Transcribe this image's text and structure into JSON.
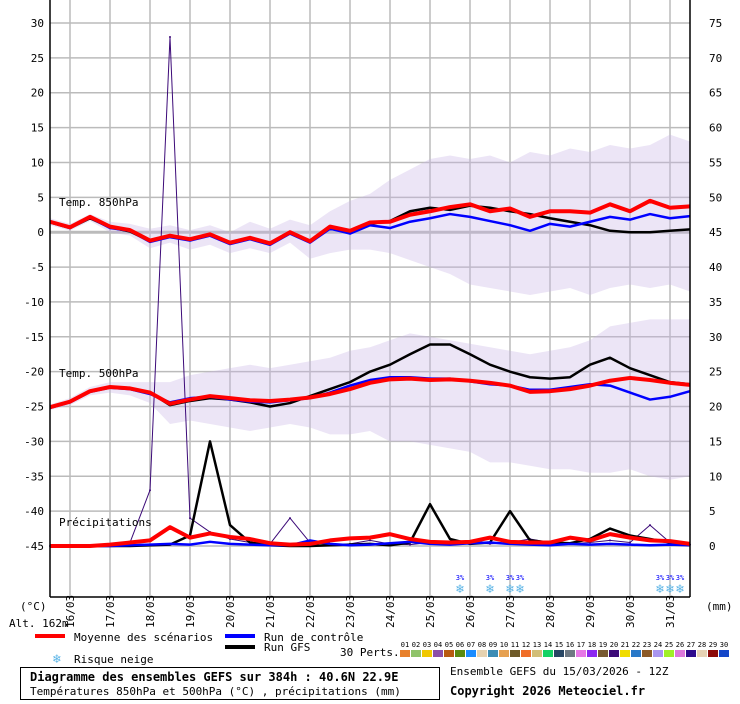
{
  "chart_data": {
    "type": "line",
    "title": "Diagramme des ensembles GEFS sur 384h : 40.6N 22.9E",
    "subtitle": "Températures 850hPa et 500hPa (°C) , précipitations (mm)",
    "run_info": "Ensemble GEFS du 15/03/2026 - 12Z",
    "copyright": "Copyright 2026 Meteociel.fr",
    "altitude": "Alt. 162m",
    "left_unit": "(°C)",
    "right_unit": "(mm)",
    "left_axis": {
      "range": [
        -45,
        30
      ],
      "ticks": [
        "30",
        "25",
        "20",
        "15",
        "10",
        "5",
        "0",
        "-5",
        "-10",
        "-15",
        "-20",
        "-25",
        "-30",
        "-35",
        "-40",
        "-45"
      ]
    },
    "right_axis": {
      "range": [
        0,
        75
      ],
      "ticks": [
        "75",
        "70",
        "65",
        "60",
        "55",
        "50",
        "45",
        "40",
        "35",
        "30",
        "25",
        "20",
        "15",
        "10",
        "5",
        "0"
      ]
    },
    "x_dates": [
      "16/03",
      "17/03",
      "18/03",
      "19/03",
      "20/03",
      "21/03",
      "22/03",
      "23/03",
      "24/03",
      "25/03",
      "26/03",
      "27/03",
      "28/03",
      "29/03",
      "30/03",
      "31/03"
    ],
    "x_hours_step": 12,
    "section_labels": {
      "t850": "Temp. 850hPa",
      "t500": "Temp. 500hPa",
      "precip": "Précipitations"
    },
    "series": {
      "t850_mean": [
        1.5,
        0.7,
        2.2,
        0.8,
        0.3,
        -1.2,
        -0.5,
        -1.0,
        -0.3,
        -1.5,
        -0.8,
        -1.6,
        0.0,
        -1.3,
        0.8,
        0.2,
        1.4,
        1.5,
        2.5,
        3.0,
        3.6,
        4.0,
        3.0,
        3.4,
        2.2,
        3.0,
        3.0,
        2.8,
        4.0,
        3.0,
        4.5,
        3.5,
        3.7
      ],
      "t850_control": [
        1.5,
        0.6,
        2.1,
        0.6,
        0.2,
        -1.4,
        -0.7,
        -1.2,
        -0.5,
        -1.7,
        -1.0,
        -1.8,
        -0.2,
        -1.5,
        0.5,
        -0.2,
        1.0,
        0.6,
        1.5,
        2.0,
        2.6,
        2.2,
        1.6,
        1.0,
        0.2,
        1.2,
        0.8,
        1.5,
        2.2,
        1.8,
        2.6,
        2.0,
        2.3
      ],
      "t850_gfs": [
        1.4,
        0.6,
        2.0,
        0.7,
        0.1,
        -1.3,
        -0.6,
        -1.1,
        -0.4,
        -1.6,
        -0.9,
        -1.7,
        -0.1,
        -1.4,
        0.6,
        0.0,
        1.2,
        1.6,
        3.0,
        3.5,
        3.2,
        3.8,
        3.5,
        3.0,
        2.6,
        2.0,
        1.5,
        1.0,
        0.2,
        0.0,
        0.0,
        0.2,
        0.4
      ],
      "t850_min": [
        1.0,
        0.2,
        1.6,
        0.0,
        -0.5,
        -2.3,
        -1.5,
        -2.5,
        -1.8,
        -3.0,
        -2.3,
        -3.0,
        -1.5,
        -3.8,
        -3.0,
        -2.5,
        -2.5,
        -3.0,
        -4.0,
        -5.0,
        -6.0,
        -7.5,
        -8.0,
        -8.5,
        -9.0,
        -8.5,
        -8.0,
        -9.0,
        -8.0,
        -7.5,
        -8.0,
        -7.5,
        -8.5
      ],
      "t850_max": [
        2.0,
        1.2,
        2.6,
        1.5,
        1.2,
        0.5,
        1.0,
        0.3,
        1.0,
        0.0,
        1.5,
        0.5,
        1.8,
        1.0,
        3.0,
        4.5,
        5.5,
        7.5,
        9.0,
        10.5,
        11.0,
        10.5,
        11.0,
        10.0,
        11.5,
        11.0,
        12.0,
        11.5,
        12.5,
        12.0,
        12.5,
        14.0,
        13.0
      ],
      "t500_mean": [
        -25.1,
        -24.3,
        -22.8,
        -22.2,
        -22.4,
        -23.0,
        -24.6,
        -24.0,
        -23.5,
        -23.8,
        -24.1,
        -24.2,
        -24.0,
        -23.7,
        -23.2,
        -22.5,
        -21.6,
        -21.1,
        -21.0,
        -21.2,
        -21.1,
        -21.3,
        -21.6,
        -22.0,
        -22.9,
        -22.8,
        -22.5,
        -22.0,
        -21.3,
        -20.9,
        -21.2,
        -21.6,
        -21.9
      ],
      "t500_control": [
        -25.2,
        -24.4,
        -22.9,
        -22.3,
        -22.5,
        -23.2,
        -24.4,
        -23.8,
        -23.6,
        -24.0,
        -24.3,
        -24.4,
        -24.1,
        -23.8,
        -23.0,
        -22.0,
        -21.2,
        -20.8,
        -20.8,
        -21.0,
        -21.0,
        -21.4,
        -21.8,
        -22.0,
        -22.6,
        -22.6,
        -22.2,
        -21.8,
        -22.0,
        -23.0,
        -24.0,
        -23.6,
        -22.8
      ],
      "t500_gfs": [
        -25.1,
        -24.3,
        -22.8,
        -22.2,
        -22.4,
        -23.0,
        -24.8,
        -24.2,
        -23.8,
        -24.0,
        -24.4,
        -25.0,
        -24.5,
        -23.5,
        -22.5,
        -21.5,
        -20.0,
        -19.0,
        -17.5,
        -16.1,
        -16.1,
        -17.5,
        -19.0,
        -20.0,
        -20.8,
        -21.0,
        -20.8,
        -19.0,
        -18.0,
        -19.5,
        -20.5,
        -21.5,
        -21.8
      ],
      "t500_min": [
        -25.5,
        -24.8,
        -23.4,
        -23.0,
        -23.4,
        -24.5,
        -27.5,
        -27.0,
        -27.5,
        -28.0,
        -28.5,
        -28.0,
        -27.5,
        -28.0,
        -29.0,
        -29.0,
        -28.5,
        -30.0,
        -30.0,
        -30.5,
        -31.0,
        -31.5,
        -33.0,
        -33.0,
        -33.5,
        -34.0,
        -34.0,
        -34.5,
        -34.5,
        -34.0,
        -35.0,
        -35.5,
        -35.0
      ],
      "t500_max": [
        -24.7,
        -23.8,
        -22.2,
        -21.5,
        -21.5,
        -21.5,
        -21.5,
        -20.5,
        -20.0,
        -19.5,
        -19.0,
        -19.5,
        -19.0,
        -18.5,
        -18.0,
        -17.0,
        -16.5,
        -15.5,
        -14.5,
        -15.0,
        -15.5,
        -16.0,
        -16.5,
        -17.0,
        -17.5,
        -17.0,
        -16.5,
        -15.5,
        -13.5,
        -13.0,
        -12.5,
        -12.5,
        -12.5
      ],
      "precip_mean": [
        0.0,
        0.0,
        0.0,
        0.2,
        0.5,
        0.8,
        2.7,
        1.2,
        1.8,
        1.3,
        1.0,
        0.4,
        0.2,
        0.3,
        0.8,
        1.1,
        1.2,
        1.7,
        1.0,
        0.6,
        0.5,
        0.6,
        1.2,
        0.6,
        0.5,
        0.5,
        1.2,
        0.8,
        1.7,
        1.2,
        0.8,
        0.7,
        0.3
      ],
      "precip_control": [
        0.0,
        0.0,
        0.0,
        0.0,
        0.1,
        0.2,
        0.3,
        0.2,
        0.6,
        0.3,
        0.2,
        0.1,
        0.1,
        0.8,
        0.3,
        0.1,
        0.2,
        0.4,
        0.6,
        0.3,
        0.2,
        0.4,
        0.5,
        0.3,
        0.2,
        0.1,
        0.3,
        0.2,
        0.3,
        0.2,
        0.1,
        0.2,
        0.1
      ],
      "precip_gfs": [
        0.0,
        0.0,
        0.0,
        0.0,
        0.0,
        0.1,
        0.2,
        1.5,
        15.0,
        3.0,
        0.5,
        0.1,
        0.0,
        0.0,
        0.1,
        0.2,
        0.3,
        0.1,
        0.5,
        6.0,
        1.0,
        0.3,
        0.5,
        5.0,
        0.8,
        0.5,
        0.4,
        1.0,
        2.5,
        1.5,
        1.0,
        0.5,
        0.1
      ],
      "precip_pert19": [
        0.0,
        0.0,
        0.0,
        0.2,
        0.5,
        8.0,
        73.0,
        4.0,
        2.0,
        1.0,
        0.5,
        0.3,
        4.0,
        0.5,
        0.2,
        0.3,
        0.8,
        0.3,
        0.2,
        0.5,
        0.6,
        0.5,
        0.3,
        0.5,
        1.0,
        0.5,
        0.3,
        0.5,
        0.8,
        0.5,
        3.0,
        0.5,
        0.2
      ]
    },
    "snow_risk": {
      "label": "3%",
      "hours": [
        246,
        264,
        276,
        282,
        366,
        372,
        378
      ]
    }
  },
  "legend": {
    "mean": "Moyenne des scénarios",
    "control": "Run de contrôle",
    "gfs": "Run GFS",
    "snow": "Risque neige",
    "perts_label": "30 Perts.",
    "pert_numbers": [
      "01",
      "02",
      "03",
      "04",
      "05",
      "06",
      "07",
      "08",
      "09",
      "10",
      "11",
      "12",
      "13",
      "14",
      "15",
      "16",
      "17",
      "18",
      "19",
      "20",
      "21",
      "22",
      "23",
      "24",
      "25",
      "26",
      "27",
      "28",
      "29",
      "30"
    ],
    "pert_colors": [
      "#e8812c",
      "#8fc36a",
      "#f0c800",
      "#8c4fa8",
      "#b85a10",
      "#5a8a10",
      "#1a8cff",
      "#e6d2b0",
      "#3c8cb4",
      "#e6a050",
      "#6e5a28",
      "#f06e28",
      "#d2be78",
      "#14d264",
      "#284664",
      "#6e7882",
      "#e678e6",
      "#8c28f0",
      "#785a32",
      "#3c0a78",
      "#f0dc00",
      "#2878c8",
      "#8c5a28",
      "#aa96f0",
      "#a0f028",
      "#dc78dc",
      "#2d0a8c",
      "#e6d2b4",
      "#8c0a0a",
      "#1446c8"
    ],
    "mean_color": "#ff0000",
    "control_color": "#0000ff",
    "gfs_color": "#000000"
  }
}
